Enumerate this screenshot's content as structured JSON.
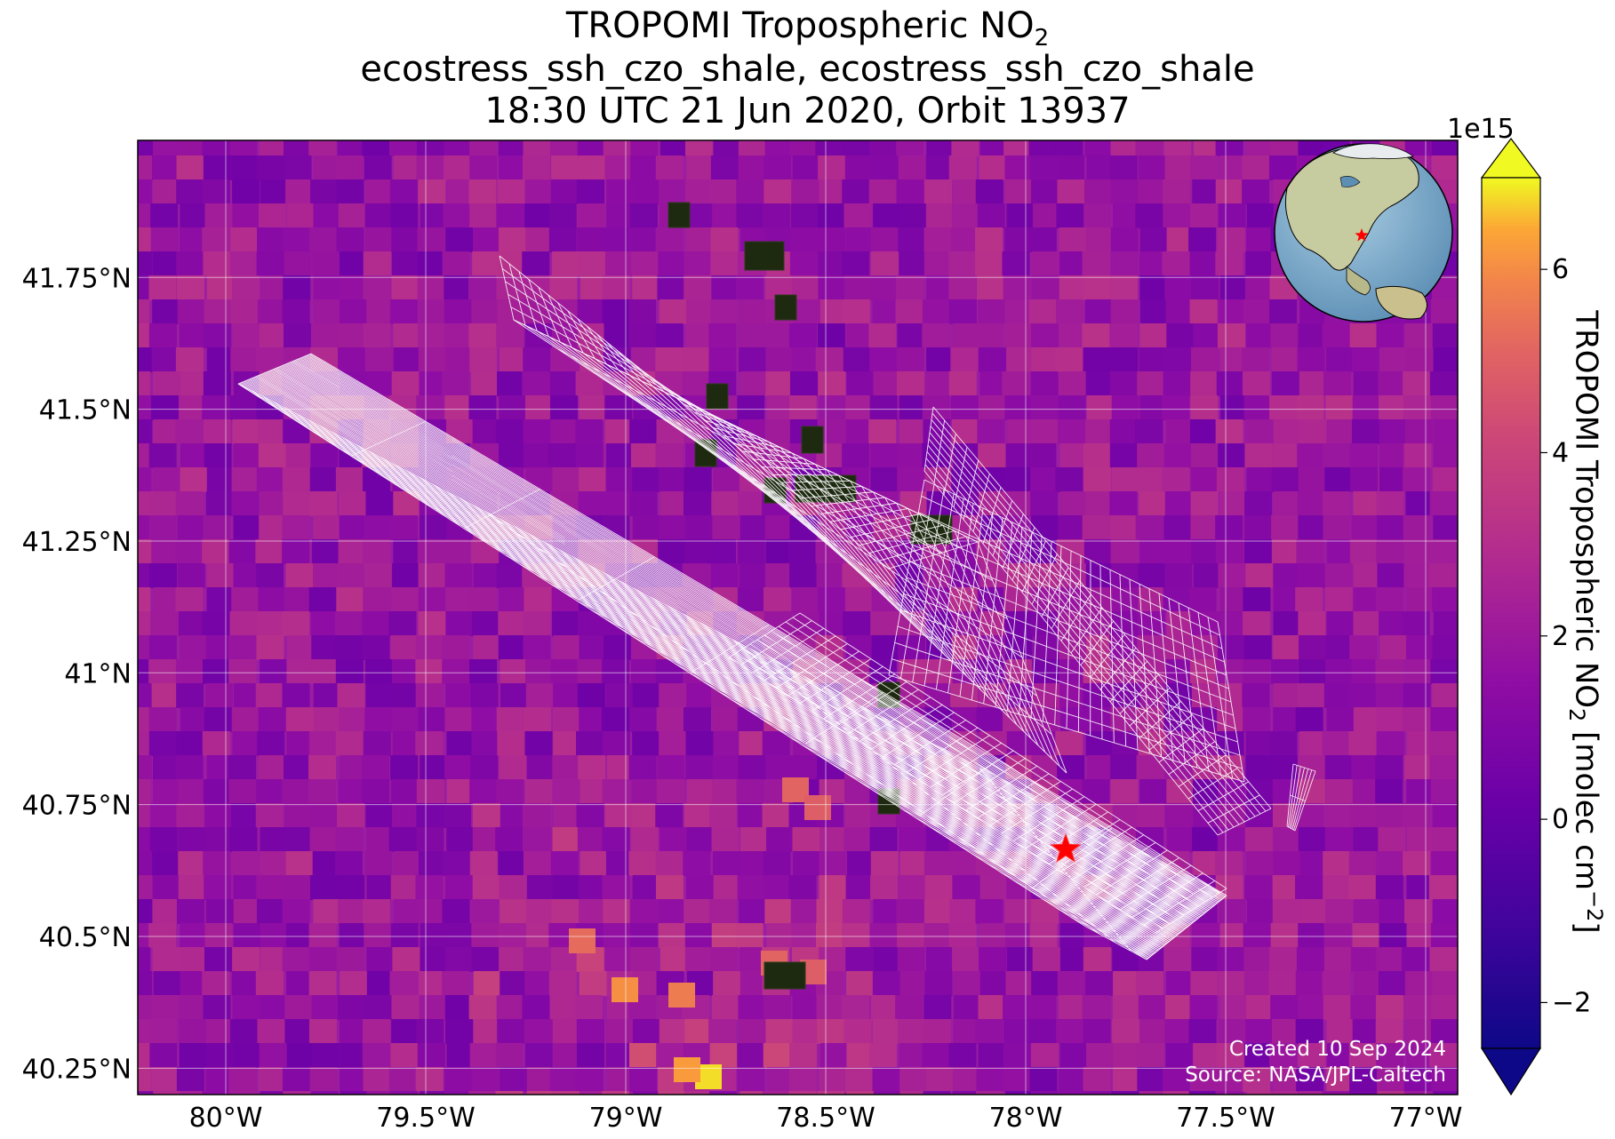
{
  "title": {
    "line1_main": "TROPOMI Tropospheric NO",
    "line1_sub": "2",
    "line2": "ecostress_ssh_czo_shale, ecostress_ssh_czo_shale",
    "line3": "18:30 UTC 21 Jun 2020, Orbit 13937"
  },
  "map": {
    "lon_range": [
      -80.22,
      -76.92
    ],
    "lat_range": [
      40.2,
      42.01
    ],
    "lon_ticks": [
      "80°W",
      "79.5°W",
      "79°W",
      "78.5°W",
      "78°W",
      "77.5°W",
      "77°W"
    ],
    "lon_tick_values": [
      -80,
      -79.5,
      -79,
      -78.5,
      -78,
      -77.5,
      -77
    ],
    "lat_ticks": [
      "41.75°N",
      "41.5°N",
      "41.25°N",
      "41°N",
      "40.75°N",
      "40.5°N",
      "40.25°N"
    ],
    "lat_tick_values": [
      41.75,
      41.5,
      41.25,
      41,
      40.75,
      40.5,
      40.25
    ],
    "site_marker": {
      "lon": -77.9,
      "lat": 40.665,
      "color": "#ff0000",
      "icon": "star-icon"
    },
    "gridlines": true,
    "pixel_grid_color": "#ffffff"
  },
  "colorbar": {
    "label_main": "TROPOMI Tropospheric NO",
    "label_sub": "2",
    "label_unit_main": " [molec cm",
    "label_unit_sup": "−2",
    "label_end": "]",
    "exponent": "1e15",
    "ticks": [
      "6",
      "4",
      "2",
      "0",
      "−2"
    ],
    "tick_values": [
      6,
      4,
      2,
      0,
      -2
    ],
    "range": [
      -2.5,
      7
    ],
    "extend": "both",
    "colormap": "plasma"
  },
  "inset_globe": {
    "icon": "globe-icon",
    "marker_color": "#ff0000"
  },
  "credits": {
    "created": "Created 10 Sep 2024",
    "source": "Source: NASA/JPL-Caltech"
  }
}
